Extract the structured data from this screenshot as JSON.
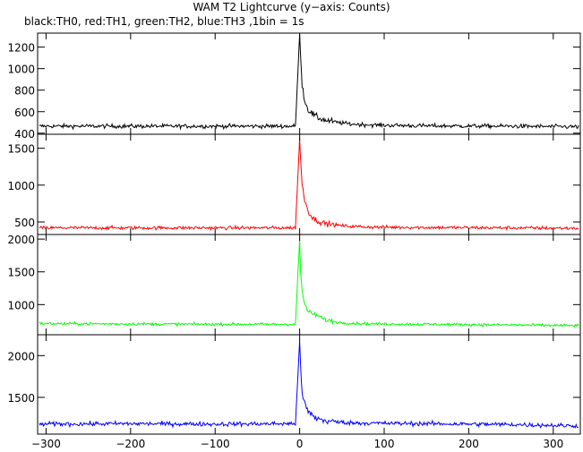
{
  "title": "WAM T2 Lightcurve (y−axis: Counts)",
  "subtitle": "black:TH0, red:TH1, green:TH2, blue:TH3 ,1bin = 1s",
  "chart_data": [
    {
      "type": "line",
      "name": "TH0",
      "color": "#000000",
      "xlim": [
        -310,
        332
      ],
      "ylim": [
        390,
        1330
      ],
      "yticks": [
        400,
        600,
        800,
        1000,
        1200
      ],
      "xticks": [
        -300,
        -200,
        -100,
        0,
        100,
        200,
        300
      ],
      "baseline": 465,
      "peak": 1320,
      "noise": 18,
      "x": [
        -300,
        -200,
        -100,
        -5,
        0,
        1,
        3,
        6,
        10,
        15,
        20,
        30,
        45,
        60,
        90,
        150,
        250,
        320
      ],
      "y": [
        465,
        465,
        465,
        465,
        1320,
        1150,
        850,
        700,
        620,
        580,
        550,
        520,
        500,
        485,
        475,
        468,
        465,
        460
      ]
    },
    {
      "type": "line",
      "name": "TH1",
      "color": "#ff0000",
      "xlim": [
        -310,
        332
      ],
      "ylim": [
        330,
        1690
      ],
      "yticks": [
        500,
        1000,
        1500
      ],
      "xticks": [
        -300,
        -200,
        -100,
        0,
        100,
        200,
        300
      ],
      "baseline": 420,
      "peak": 1640,
      "noise": 22,
      "x": [
        -300,
        -200,
        -100,
        -5,
        0,
        1,
        3,
        6,
        10,
        15,
        20,
        30,
        45,
        60,
        90,
        150,
        250,
        320
      ],
      "y": [
        420,
        420,
        420,
        420,
        1640,
        1350,
        1000,
        800,
        650,
        560,
        520,
        480,
        455,
        440,
        430,
        425,
        420,
        415
      ]
    },
    {
      "type": "line",
      "name": "TH2",
      "color": "#00ff00",
      "xlim": [
        -310,
        332
      ],
      "ylim": [
        540,
        2070
      ],
      "yticks": [
        1000,
        1500,
        2000
      ],
      "xticks": [
        -300,
        -200,
        -100,
        0,
        100,
        200,
        300
      ],
      "baseline": 700,
      "peak": 2000,
      "noise": 20,
      "x": [
        -300,
        -200,
        -100,
        -5,
        0,
        1,
        3,
        6,
        10,
        15,
        20,
        30,
        45,
        60,
        90,
        150,
        250,
        320
      ],
      "y": [
        710,
        705,
        700,
        700,
        2000,
        1500,
        1200,
        1000,
        900,
        860,
        840,
        770,
        730,
        715,
        705,
        700,
        690,
        680
      ]
    },
    {
      "type": "line",
      "name": "TH3",
      "color": "#0000ff",
      "xlim": [
        -310,
        332
      ],
      "ylim": [
        1060,
        2250
      ],
      "yticks": [
        1500,
        2000
      ],
      "xticks": [
        -300,
        -200,
        -100,
        0,
        100,
        200,
        300
      ],
      "xticklabels": [
        "−300",
        "−200",
        "−100",
        "0",
        "100",
        "200",
        "300"
      ],
      "baseline": 1180,
      "peak": 2180,
      "noise": 25,
      "x": [
        -300,
        -200,
        -100,
        -5,
        0,
        1,
        3,
        6,
        10,
        15,
        20,
        30,
        45,
        60,
        90,
        150,
        250,
        320
      ],
      "y": [
        1180,
        1185,
        1180,
        1185,
        2180,
        1850,
        1550,
        1420,
        1330,
        1280,
        1250,
        1220,
        1205,
        1195,
        1190,
        1185,
        1175,
        1160
      ]
    }
  ]
}
